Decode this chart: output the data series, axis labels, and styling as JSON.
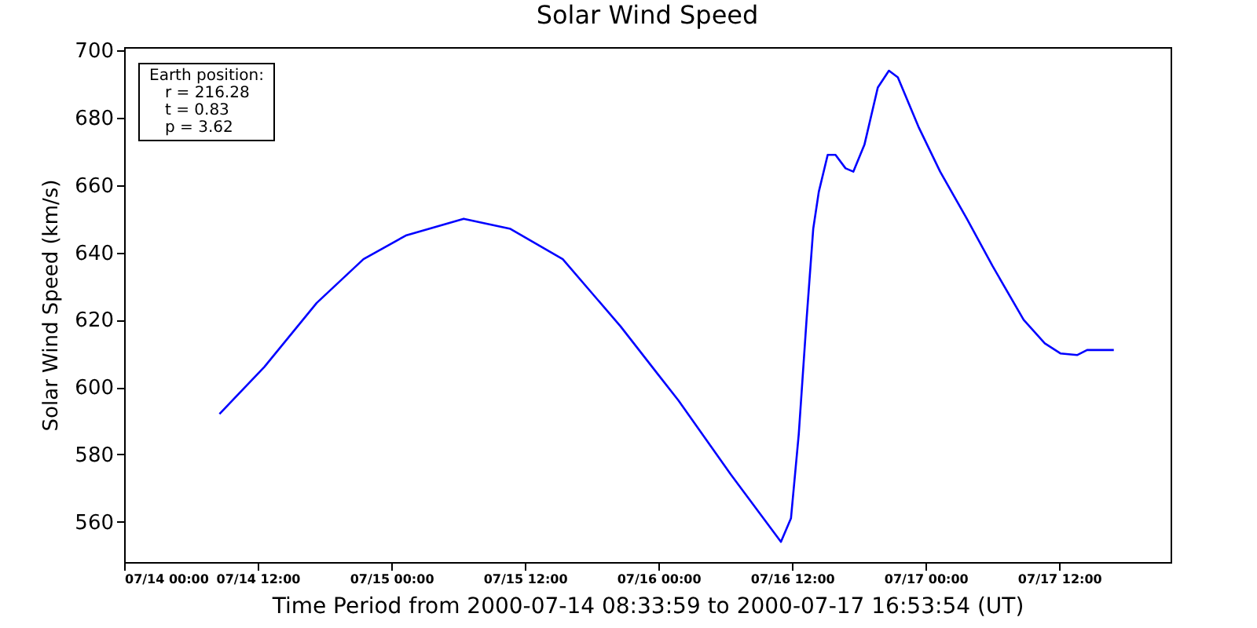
{
  "chart_data": {
    "type": "line",
    "title": "Solar Wind Speed",
    "xlabel": "Time Period from 2000-07-14 08:33:59 to 2000-07-17 16:53:54 (UT)",
    "ylabel": "Solar Wind Speed (km/s)",
    "annotations": [
      "Earth position:",
      "r = 216.28",
      "t = 0.83",
      "p = 3.62"
    ],
    "x": [
      "2000-07-14T08:34",
      "2000-07-14T12:36",
      "2000-07-14T17:18",
      "2000-07-14T21:30",
      "2000-07-15T01:18",
      "2000-07-15T06:30",
      "2000-07-15T10:42",
      "2000-07-15T15:24",
      "2000-07-15T20:36",
      "2000-07-15T23:54",
      "2000-07-16T01:48",
      "2000-07-16T06:30",
      "2000-07-16T11:00",
      "2000-07-16T11:54",
      "2000-07-16T12:36",
      "2000-07-16T13:18",
      "2000-07-16T13:54",
      "2000-07-16T14:24",
      "2000-07-16T15:12",
      "2000-07-16T15:54",
      "2000-07-16T16:48",
      "2000-07-16T17:30",
      "2000-07-16T18:30",
      "2000-07-16T19:42",
      "2000-07-16T20:42",
      "2000-07-16T21:30",
      "2000-07-16T23:24",
      "2000-07-17T01:18",
      "2000-07-17T03:42",
      "2000-07-17T06:00",
      "2000-07-17T08:48",
      "2000-07-17T10:42",
      "2000-07-17T12:06",
      "2000-07-17T13:36",
      "2000-07-17T14:30",
      "2000-07-17T16:54"
    ],
    "series": [
      {
        "color": "#0000ff",
        "values": [
          592,
          606,
          625,
          638,
          645,
          650,
          647,
          638,
          618,
          604,
          596,
          574,
          554,
          561,
          586,
          620,
          647,
          658,
          669,
          669,
          665,
          664,
          672,
          689,
          694,
          692,
          677,
          664,
          650,
          636,
          620,
          613,
          610,
          609.5,
          611,
          611
        ]
      }
    ],
    "xlim": [
      "2000-07-14T00:00",
      "2000-07-17T22:00"
    ],
    "xticks": [
      {
        "value": "2000-07-14T00:00",
        "label": "07/14 00:00"
      },
      {
        "value": "2000-07-14T12:00",
        "label": "07/14 12:00"
      },
      {
        "value": "2000-07-15T00:00",
        "label": "07/15 00:00"
      },
      {
        "value": "2000-07-15T12:00",
        "label": "07/15 12:00"
      },
      {
        "value": "2000-07-16T00:00",
        "label": "07/16 00:00"
      },
      {
        "value": "2000-07-16T12:00",
        "label": "07/16 12:00"
      },
      {
        "value": "2000-07-17T00:00",
        "label": "07/17 00:00"
      },
      {
        "value": "2000-07-17T12:00",
        "label": "07/17 12:00"
      }
    ],
    "ylim": [
      548,
      701
    ],
    "yticks": [
      560,
      580,
      600,
      620,
      640,
      660,
      680,
      700
    ],
    "grid": false,
    "marker": "none",
    "line_style": "solid"
  }
}
